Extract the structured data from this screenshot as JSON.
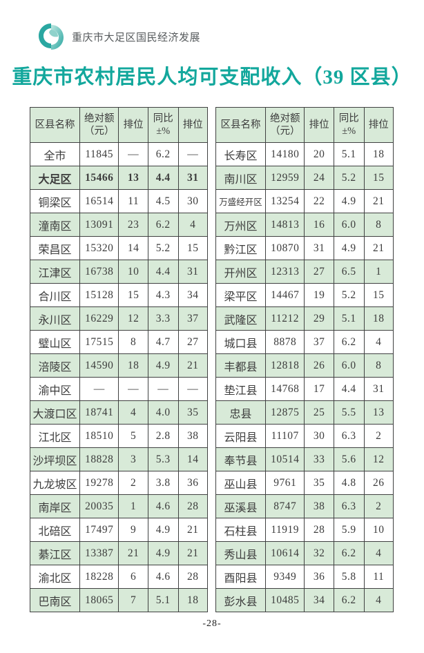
{
  "header": {
    "brand": "重庆市大足区国民经济发展",
    "logo_icon": "teal-swirl-logo"
  },
  "title": "重庆市农村居民人均可支配收入（39 区县）",
  "footer": {
    "page_number": "-28-"
  },
  "colors": {
    "accent_teal": "#12a79c",
    "row_green": "#d8ead8",
    "table_border": "#3f4040",
    "brand_gray": "#565a5c",
    "logo_teal_dark": "#2aa7a1",
    "logo_teal_light": "#8fd2cb"
  },
  "tables": {
    "headers": [
      "区县名称",
      "绝对额\n（元）",
      "排位",
      "同比\n±%",
      "排位"
    ],
    "left": {
      "rows": [
        {
          "name": "全市",
          "value": "11845",
          "rank1": "—",
          "yoy": "6.2",
          "rank2": "—"
        },
        {
          "name": "大足区",
          "value": "15466",
          "rank1": "13",
          "yoy": "4.4",
          "rank2": "31",
          "bold": true
        },
        {
          "name": "铜梁区",
          "value": "16514",
          "rank1": "11",
          "yoy": "4.5",
          "rank2": "30"
        },
        {
          "name": "潼南区",
          "value": "13091",
          "rank1": "23",
          "yoy": "6.2",
          "rank2": "4"
        },
        {
          "name": "荣昌区",
          "value": "15320",
          "rank1": "14",
          "yoy": "5.2",
          "rank2": "15"
        },
        {
          "name": "江津区",
          "value": "16738",
          "rank1": "10",
          "yoy": "4.4",
          "rank2": "31"
        },
        {
          "name": "合川区",
          "value": "15128",
          "rank1": "15",
          "yoy": "4.3",
          "rank2": "34"
        },
        {
          "name": "永川区",
          "value": "16229",
          "rank1": "12",
          "yoy": "3.3",
          "rank2": "37"
        },
        {
          "name": "璧山区",
          "value": "17515",
          "rank1": "8",
          "yoy": "4.7",
          "rank2": "27"
        },
        {
          "name": "涪陵区",
          "value": "14590",
          "rank1": "18",
          "yoy": "4.9",
          "rank2": "21"
        },
        {
          "name": "渝中区",
          "value": "—",
          "rank1": "—",
          "yoy": "—",
          "rank2": "—"
        },
        {
          "name": "大渡口区",
          "value": "18741",
          "rank1": "4",
          "yoy": "4.0",
          "rank2": "35"
        },
        {
          "name": "江北区",
          "value": "18510",
          "rank1": "5",
          "yoy": "2.8",
          "rank2": "38"
        },
        {
          "name": "沙坪坝区",
          "value": "18828",
          "rank1": "3",
          "yoy": "5.3",
          "rank2": "14"
        },
        {
          "name": "九龙坡区",
          "value": "19278",
          "rank1": "2",
          "yoy": "3.8",
          "rank2": "36"
        },
        {
          "name": "南岸区",
          "value": "20035",
          "rank1": "1",
          "yoy": "4.6",
          "rank2": "28"
        },
        {
          "name": "北碚区",
          "value": "17497",
          "rank1": "9",
          "yoy": "4.9",
          "rank2": "21"
        },
        {
          "name": "綦江区",
          "value": "13387",
          "rank1": "21",
          "yoy": "4.9",
          "rank2": "21"
        },
        {
          "name": "渝北区",
          "value": "18228",
          "rank1": "6",
          "yoy": "4.6",
          "rank2": "28"
        },
        {
          "name": "巴南区",
          "value": "18065",
          "rank1": "7",
          "yoy": "5.1",
          "rank2": "18"
        }
      ]
    },
    "right": {
      "rows": [
        {
          "name": "长寿区",
          "value": "14180",
          "rank1": "20",
          "yoy": "5.1",
          "rank2": "18"
        },
        {
          "name": "南川区",
          "value": "12959",
          "rank1": "24",
          "yoy": "5.2",
          "rank2": "15"
        },
        {
          "name": "万盛经开区",
          "value": "13254",
          "rank1": "22",
          "yoy": "4.9",
          "rank2": "21"
        },
        {
          "name": "万州区",
          "value": "14813",
          "rank1": "16",
          "yoy": "6.0",
          "rank2": "8"
        },
        {
          "name": "黔江区",
          "value": "10870",
          "rank1": "31",
          "yoy": "4.9",
          "rank2": "21"
        },
        {
          "name": "开州区",
          "value": "12313",
          "rank1": "27",
          "yoy": "6.5",
          "rank2": "1"
        },
        {
          "name": "梁平区",
          "value": "14467",
          "rank1": "19",
          "yoy": "5.2",
          "rank2": "15"
        },
        {
          "name": "武隆区",
          "value": "11212",
          "rank1": "29",
          "yoy": "5.1",
          "rank2": "18"
        },
        {
          "name": "城口县",
          "value": "8878",
          "rank1": "37",
          "yoy": "6.2",
          "rank2": "4"
        },
        {
          "name": "丰都县",
          "value": "12818",
          "rank1": "26",
          "yoy": "6.0",
          "rank2": "8"
        },
        {
          "name": "垫江县",
          "value": "14768",
          "rank1": "17",
          "yoy": "4.4",
          "rank2": "31"
        },
        {
          "name": "忠县",
          "value": "12875",
          "rank1": "25",
          "yoy": "5.5",
          "rank2": "13"
        },
        {
          "name": "云阳县",
          "value": "11107",
          "rank1": "30",
          "yoy": "6.3",
          "rank2": "2"
        },
        {
          "name": "奉节县",
          "value": "10514",
          "rank1": "33",
          "yoy": "5.6",
          "rank2": "12"
        },
        {
          "name": "巫山县",
          "value": "9761",
          "rank1": "35",
          "yoy": "4.8",
          "rank2": "26"
        },
        {
          "name": "巫溪县",
          "value": "8747",
          "rank1": "38",
          "yoy": "6.3",
          "rank2": "2"
        },
        {
          "name": "石柱县",
          "value": "11919",
          "rank1": "28",
          "yoy": "5.9",
          "rank2": "10"
        },
        {
          "name": "秀山县",
          "value": "10614",
          "rank1": "32",
          "yoy": "6.2",
          "rank2": "4"
        },
        {
          "name": "酉阳县",
          "value": "9349",
          "rank1": "36",
          "yoy": "5.8",
          "rank2": "11"
        },
        {
          "name": "彭水县",
          "value": "10485",
          "rank1": "34",
          "yoy": "6.2",
          "rank2": "4"
        }
      ]
    }
  }
}
